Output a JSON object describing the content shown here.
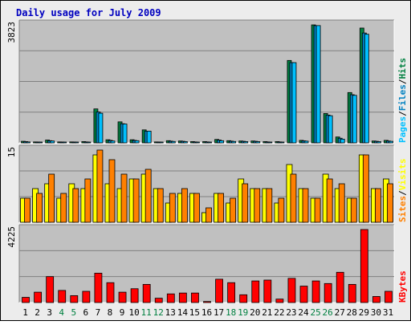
{
  "title": "Daily usage for July 2009",
  "colors": {
    "background": "#ECECEC",
    "plot_bg": "#C0C0C0",
    "title": "#0000C0",
    "hits": "#008040",
    "files": "#0080C0",
    "pages": "#00C0FF",
    "visits": "#FFFF00",
    "sites": "#FF8000",
    "kbytes": "#FF0000",
    "weekend": "#008040"
  },
  "chart_data": [
    {
      "type": "bar",
      "panel": "hits-files-pages",
      "ymax_label": "3823",
      "ylim": [
        0,
        3823
      ],
      "right_label": [
        "Pages",
        "Files",
        "Hits"
      ],
      "categories": [
        "1",
        "2",
        "3",
        "4",
        "5",
        "6",
        "7",
        "8",
        "9",
        "10",
        "11",
        "12",
        "13",
        "14",
        "15",
        "16",
        "17",
        "18",
        "19",
        "20",
        "21",
        "22",
        "23",
        "24",
        "25",
        "26",
        "27",
        "28",
        "29",
        "30",
        "31"
      ],
      "series": [
        {
          "name": "Hits",
          "values": [
            50,
            30,
            90,
            30,
            30,
            40,
            1100,
            100,
            680,
            100,
            420,
            30,
            70,
            60,
            40,
            40,
            110,
            70,
            60,
            60,
            40,
            40,
            2670,
            80,
            3823,
            950,
            190,
            1630,
            3720,
            60,
            80
          ]
        },
        {
          "name": "Files",
          "values": [
            40,
            25,
            70,
            25,
            25,
            30,
            1000,
            80,
            620,
            80,
            380,
            25,
            55,
            50,
            30,
            30,
            90,
            55,
            50,
            50,
            30,
            30,
            2600,
            65,
            3800,
            900,
            150,
            1560,
            3560,
            50,
            60
          ]
        },
        {
          "name": "Pages",
          "values": [
            30,
            20,
            60,
            20,
            20,
            25,
            960,
            60,
            610,
            70,
            380,
            20,
            45,
            40,
            25,
            25,
            70,
            45,
            40,
            40,
            25,
            25,
            2600,
            55,
            3800,
            880,
            120,
            1540,
            3520,
            40,
            50
          ]
        }
      ]
    },
    {
      "type": "bar",
      "panel": "visits-sites",
      "ymax_label": "15",
      "ylim": [
        0,
        15
      ],
      "right_label": [
        "Sites",
        "Visits"
      ],
      "categories": [
        "1",
        "2",
        "3",
        "4",
        "5",
        "6",
        "7",
        "8",
        "9",
        "10",
        "11",
        "12",
        "13",
        "14",
        "15",
        "16",
        "17",
        "18",
        "19",
        "20",
        "21",
        "22",
        "23",
        "24",
        "25",
        "26",
        "27",
        "28",
        "29",
        "30",
        "31"
      ],
      "series": [
        {
          "name": "Visits",
          "values": [
            5,
            7,
            8,
            5,
            8,
            7,
            14,
            8,
            7,
            9,
            10,
            7,
            4,
            6,
            6,
            2,
            6,
            4,
            9,
            7,
            7,
            4,
            12,
            7,
            5,
            10,
            7,
            5,
            14,
            7,
            9
          ]
        },
        {
          "name": "Sites",
          "values": [
            5,
            6,
            10,
            6,
            7,
            9,
            15,
            13,
            10,
            9,
            11,
            7,
            6,
            7,
            6,
            3,
            6,
            5,
            8,
            7,
            7,
            5,
            10,
            7,
            5,
            9,
            8,
            5,
            14,
            7,
            8
          ]
        }
      ]
    },
    {
      "type": "bar",
      "panel": "kbytes",
      "ymax_label": "4225",
      "ylim": [
        0,
        4225
      ],
      "right_label": [
        "KBytes"
      ],
      "categories": [
        "1",
        "2",
        "3",
        "4",
        "5",
        "6",
        "7",
        "8",
        "9",
        "10",
        "11",
        "12",
        "13",
        "14",
        "15",
        "16",
        "17",
        "18",
        "19",
        "20",
        "21",
        "22",
        "23",
        "24",
        "25",
        "26",
        "27",
        "28",
        "29",
        "30",
        "31"
      ],
      "series": [
        {
          "name": "KBytes",
          "values": [
            300,
            600,
            1500,
            700,
            400,
            650,
            1700,
            1150,
            600,
            800,
            1050,
            250,
            500,
            550,
            550,
            60,
            1350,
            1150,
            450,
            1250,
            1300,
            200,
            1400,
            950,
            1250,
            1100,
            1750,
            1050,
            4225,
            350,
            650
          ]
        }
      ]
    }
  ],
  "x_labels": [
    "1",
    "2",
    "3",
    "4",
    "5",
    "6",
    "7",
    "8",
    "9",
    "10",
    "11",
    "12",
    "13",
    "14",
    "15",
    "16",
    "17",
    "18",
    "19",
    "20",
    "21",
    "22",
    "23",
    "24",
    "25",
    "26",
    "27",
    "28",
    "29",
    "30",
    "31"
  ],
  "weekend_days": [
    4,
    5,
    11,
    12,
    18,
    19,
    25,
    26
  ]
}
